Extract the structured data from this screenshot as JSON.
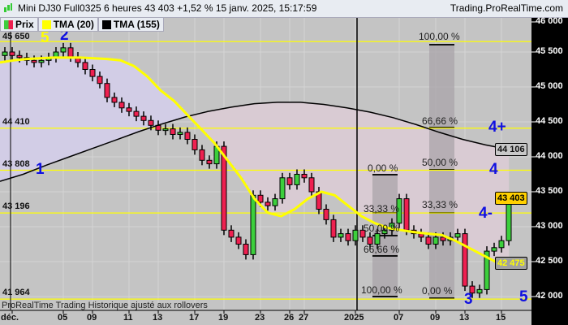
{
  "title": {
    "text": "Mini DJ30 Full0325 6 heures 43 403 +1,52 % 15 janv. 2025, 15:17:59",
    "site": "Trading.ProRealTime.com"
  },
  "legend": [
    {
      "label": "Prix",
      "color": "#e8203a"
    },
    {
      "label": "TMA (20)",
      "color": "#ffff00"
    },
    {
      "label": "TMA (155)",
      "color": "#000000"
    }
  ],
  "footer": "ProRealTime Trading  Historique ajusté aux rollovers",
  "colors": {
    "up": "#3ccf3c",
    "down": "#ee2050",
    "tma20": "#ffff00",
    "tma155": "#000000",
    "wave": "#1010e0",
    "hline": "#ffff00"
  },
  "chart_data": {
    "type": "candlestick",
    "ylim": [
      41900,
      46000
    ],
    "yticks": [
      {
        "v": 46000,
        "t": "46 000"
      },
      {
        "v": 45500,
        "t": "45 500"
      },
      {
        "v": 45000,
        "t": "45 000"
      },
      {
        "v": 44500,
        "t": "44 500"
      },
      {
        "v": 44000,
        "t": "44 000"
      },
      {
        "v": 43500,
        "t": "43 500"
      },
      {
        "v": 43000,
        "t": "43 000"
      },
      {
        "v": 42500,
        "t": "42 500"
      },
      {
        "v": 42000,
        "t": "42 000"
      }
    ],
    "xticks": [
      {
        "i": 1,
        "t": "déc."
      },
      {
        "i": 8,
        "t": "05"
      },
      {
        "i": 12,
        "t": "09"
      },
      {
        "i": 17,
        "t": "11"
      },
      {
        "i": 21,
        "t": "13"
      },
      {
        "i": 26,
        "t": "17"
      },
      {
        "i": 30,
        "t": "19"
      },
      {
        "i": 35,
        "t": "23"
      },
      {
        "i": 39,
        "t": "26"
      },
      {
        "i": 41,
        "t": "27"
      },
      {
        "i": 48,
        "t": "2025"
      },
      {
        "i": 54,
        "t": "07"
      },
      {
        "i": 59,
        "t": "09"
      },
      {
        "i": 63,
        "t": "13"
      },
      {
        "i": 68,
        "t": "15"
      }
    ],
    "close": [
      45500,
      45450,
      45420,
      45380,
      45350,
      45380,
      45420,
      45500,
      45560,
      45430,
      45350,
      45250,
      45150,
      45050,
      44850,
      44780,
      44700,
      44650,
      44580,
      44520,
      44450,
      44380,
      44400,
      44320,
      44350,
      44250,
      44100,
      43950,
      43900,
      44150,
      42950,
      42850,
      42750,
      42600,
      43450,
      43350,
      43300,
      43400,
      43700,
      43600,
      43750,
      43700,
      43500,
      43250,
      43100,
      42850,
      42900,
      42800,
      42950,
      42850,
      42750,
      42900,
      42950,
      43050,
      43400,
      42950,
      42900,
      42850,
      42750,
      42850,
      42800,
      42850,
      42900,
      42150,
      42050,
      42100,
      42650,
      42700,
      42800,
      43403
    ],
    "tma20": [
      45350,
      45380,
      45400,
      45410,
      45420,
      45420,
      45420,
      45410,
      45400,
      45380,
      45300,
      45150,
      44950,
      44800,
      44600,
      44400,
      44200,
      43950,
      43700,
      43400,
      43200,
      43150,
      43250,
      43400,
      43500,
      43450,
      43300,
      43150,
      43050,
      42980,
      42950,
      42920,
      42900,
      42880,
      42800,
      42700,
      42600,
      42500,
      42475
    ],
    "tma155": [
      43650,
      43750,
      43880,
      44000,
      44120,
      44240,
      44360,
      44470,
      44570,
      44650,
      44710,
      44760,
      44780,
      44780,
      44750,
      44700,
      44640,
      44560,
      44460,
      44350,
      44250,
      44170,
      44106
    ],
    "hlines": [
      {
        "v": 45650,
        "label": "45 650"
      },
      {
        "v": 44410,
        "label": "44 410"
      },
      {
        "v": 43808,
        "label": "43 808"
      },
      {
        "v": 43196,
        "label": "43 196"
      },
      {
        "v": 41964,
        "label": "41 964"
      }
    ],
    "badges": [
      {
        "v": 44106,
        "t": "44 106",
        "style": "gray"
      },
      {
        "v": 43403,
        "t": "43 403",
        "style": "last"
      },
      {
        "v": 42475,
        "t": "42 475",
        "style": "tma20"
      }
    ],
    "fib_left": [
      "0,00 %",
      "33,33 %",
      "50,00 %",
      "66,66 %",
      "100,00 %"
    ],
    "fib_right": [
      "100,00 %",
      "66,66 %",
      "50,00 %",
      "33,33 %",
      "0,00 %"
    ],
    "waves": [
      {
        "t": "1"
      },
      {
        "t": "2"
      },
      {
        "t": "3"
      },
      {
        "t": "4+"
      },
      {
        "t": "4"
      },
      {
        "t": "4-"
      },
      {
        "t": "5"
      },
      {
        "t": "5"
      }
    ]
  }
}
